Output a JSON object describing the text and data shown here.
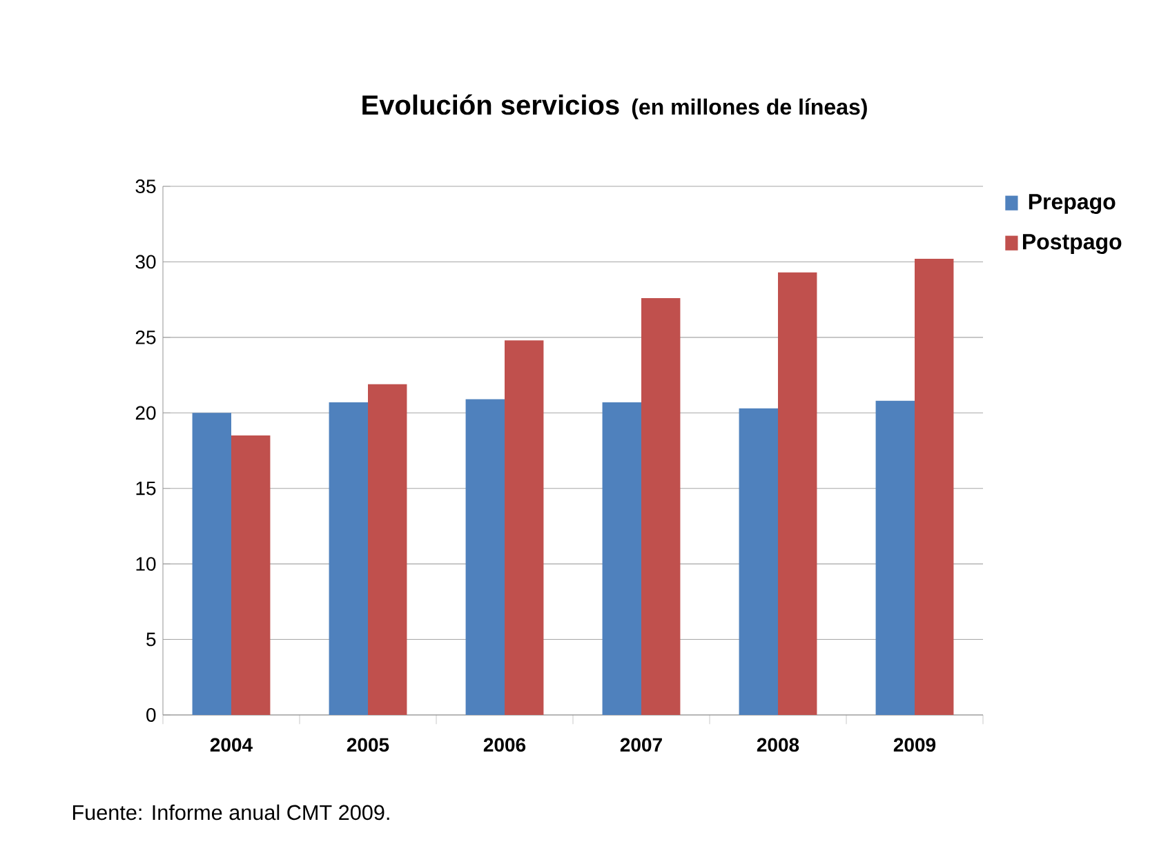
{
  "chart_data": {
    "type": "bar",
    "title": "Evolución servicios",
    "subtitle": "(en millones de líneas)",
    "categories": [
      "2004",
      "2005",
      "2006",
      "2007",
      "2008",
      "2009"
    ],
    "series": [
      {
        "name": "Prepago",
        "color": "#4f81bd",
        "values": [
          20.0,
          20.7,
          20.9,
          20.7,
          20.3,
          20.8
        ]
      },
      {
        "name": "Postpago",
        "color": "#c0504d",
        "values": [
          18.5,
          21.9,
          24.8,
          27.6,
          29.3,
          30.2
        ]
      }
    ],
    "ylim": [
      0,
      35
    ],
    "yticks": [
      0,
      5,
      10,
      15,
      20,
      25,
      30,
      35
    ],
    "grid": "y",
    "legend": "top right",
    "annotations": [
      "Fuente: Informe anual CMT 2009."
    ]
  }
}
